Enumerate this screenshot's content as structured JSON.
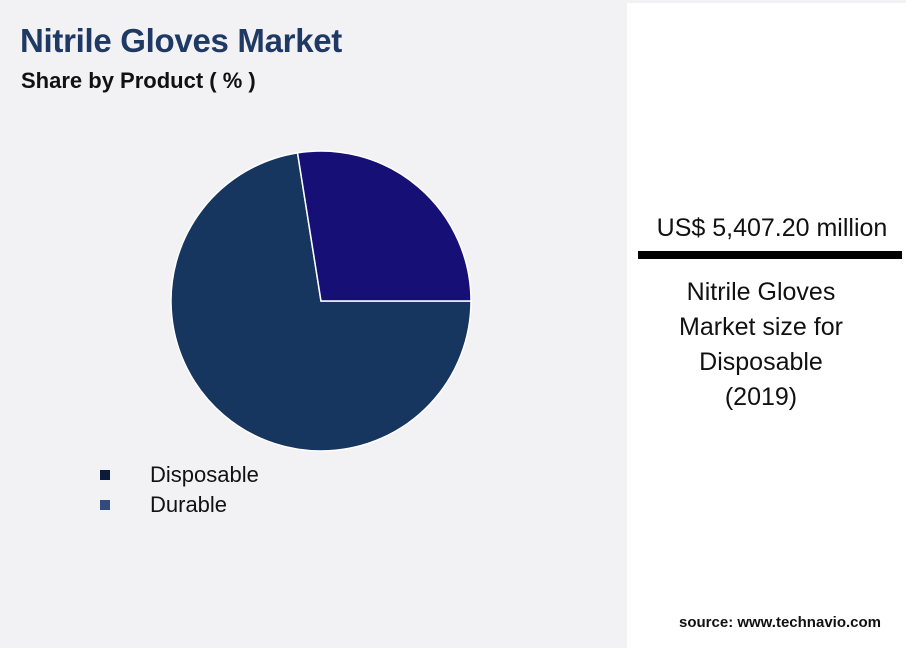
{
  "title": "Nitrile Gloves Market",
  "subtitle": "Share by Product ( % )",
  "chart_data": {
    "type": "pie",
    "title": "Nitrile Gloves Market",
    "subtitle": "Share by Product ( % )",
    "categories": [
      "Disposable",
      "Durable"
    ],
    "values": [
      72.5,
      27.5
    ],
    "colors": [
      "#17365f",
      "#160f75"
    ],
    "legend_colors": [
      "#0b1c3a",
      "#334a80"
    ],
    "legend_position": "bottom-left"
  },
  "highlight": {
    "value": "US$ 5,407.20 million",
    "line1": "Nitrile Gloves",
    "line2": "Market size for",
    "line3": "Disposable",
    "line4": "(2019)"
  },
  "source": "source: www.technavio.com"
}
